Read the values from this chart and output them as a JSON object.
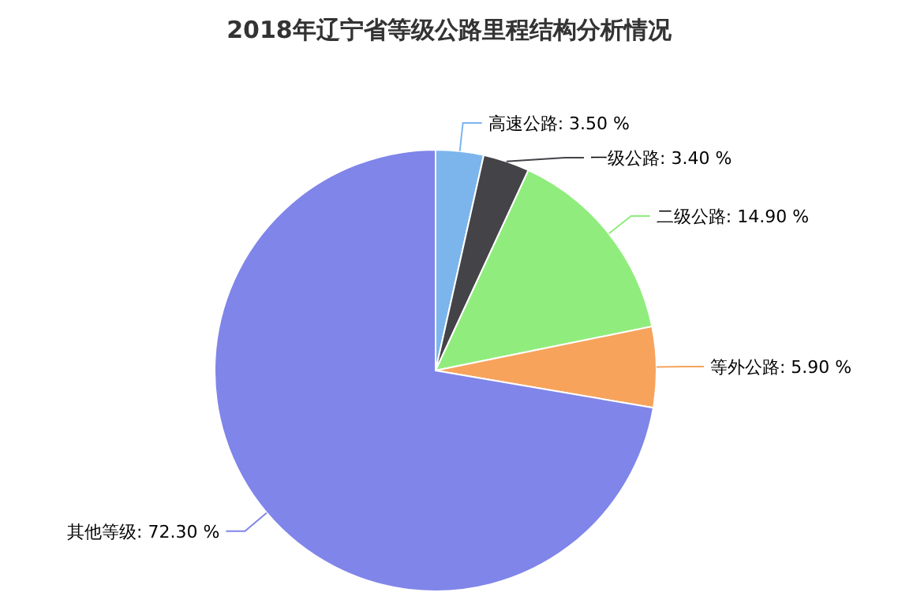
{
  "chart_data": {
    "type": "pie",
    "title": "2018年辽宁省等级公路里程结构分析情况",
    "categories": [
      "高速公路",
      "一级公路",
      "二级公路",
      "等外公路",
      "其他等级"
    ],
    "values": [
      3.5,
      3.4,
      14.9,
      5.9,
      72.3
    ],
    "value_labels": [
      "3.50 %",
      "3.40 %",
      "14.90 %",
      "5.90 %",
      "72.30 %"
    ],
    "colors": [
      "#7cb5ec",
      "#434348",
      "#90ed7d",
      "#f7a35c",
      "#8085e9"
    ]
  }
}
